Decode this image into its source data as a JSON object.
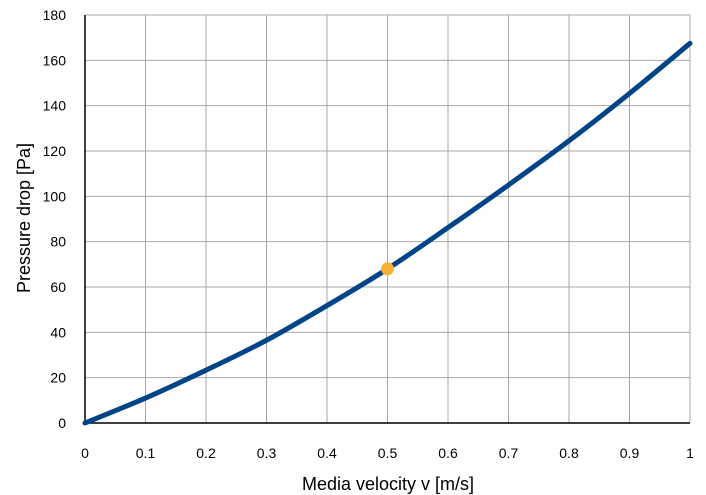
{
  "chart_data": {
    "type": "line",
    "title": "",
    "xlabel": "Media velocity v [m/s]",
    "ylabel": "Pressure drop [Pa]",
    "xlim": [
      0,
      1
    ],
    "ylim": [
      0,
      180
    ],
    "x_ticks": [
      "0",
      "0.1",
      "0.2",
      "0.3",
      "0.4",
      "0.5",
      "0.6",
      "0.7",
      "0.8",
      "0.9",
      "1"
    ],
    "y_ticks": [
      "0",
      "20",
      "40",
      "60",
      "80",
      "100",
      "120",
      "140",
      "160",
      "180"
    ],
    "grid": true,
    "series": [
      {
        "color": "#004488",
        "x": [
          0,
          0.1,
          0.2,
          0.3,
          0.4,
          0.5,
          0.6,
          0.7,
          0.8,
          0.9,
          1.0
        ],
        "y": [
          0,
          11,
          23.3,
          36.5,
          51.8,
          68.0,
          86.2,
          105.0,
          124.5,
          145.4,
          167.5
        ]
      }
    ],
    "highlight_point": {
      "x": 0.5,
      "y": 68,
      "color": "#F5B335"
    }
  }
}
